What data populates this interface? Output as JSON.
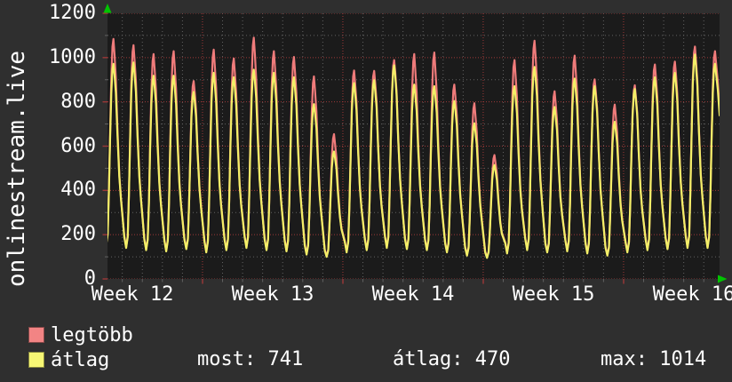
{
  "graph": {
    "vertical_axis_title": "onlinestream.live",
    "legend": [
      {
        "label": "legtöbb",
        "color": "#f28484"
      },
      {
        "label": "átlag",
        "color": "#f7f774"
      }
    ],
    "stats": [
      {
        "text": "most: 741"
      },
      {
        "text": "átlag: 470"
      },
      {
        "text": "max: 1014"
      }
    ]
  },
  "colors": {
    "background": "#2f2f2f",
    "plot_background": "#1b1b1b",
    "series_max_line": "#ef7b7b",
    "series_avg_line": "#f3ef68",
    "grid_major": "#9e3838",
    "grid_minor": "#626262",
    "axis_arrow": "#00c400",
    "text": "#ffffff"
  },
  "chart_data": {
    "type": "line",
    "title": "onlinestream.live",
    "xlabel": "",
    "ylabel": "",
    "ylim": [
      0,
      1200
    ],
    "y_ticks": [
      0,
      200,
      400,
      600,
      800,
      1000,
      1200
    ],
    "y_minor_ticks": [
      100,
      300,
      500,
      700,
      900,
      1100
    ],
    "x_tick_labels": [
      "Week 12",
      "Week 13",
      "Week 14",
      "Week 15",
      "Week 16"
    ],
    "grid": "dotted, red majors (weeks / every 200), gray minors (days / every 100)",
    "legend_position": "bottom-left",
    "days_shown": 30.5,
    "series": [
      {
        "name": "legtöbb",
        "color": "#ef7b7b",
        "daily_peaks": [
          1080,
          1052,
          1012,
          1025,
          890,
          1032,
          992,
          1086,
          1025,
          999,
          911,
          650,
          938,
          936,
          985,
          1012,
          1019,
          874,
          790,
          556,
          985,
          1072,
          844,
          1005,
          898,
          784,
          871,
          965,
          978,
          1046,
          1025
        ]
      },
      {
        "name": "átlag",
        "color": "#f3ef68",
        "daily_peaks": [
          972,
          978,
          918,
          918,
          845,
          931,
          911,
          945,
          931,
          911,
          790,
          576,
          885,
          898,
          965,
          878,
          871,
          804,
          703,
          515,
          871,
          958,
          777,
          905,
          871,
          710,
          858,
          911,
          931,
          1014,
          972
        ]
      }
    ],
    "daily_troughs": [
      150,
      140,
      130,
      125,
      135,
      120,
      130,
      140,
      130,
      125,
      110,
      100,
      120,
      130,
      140,
      135,
      130,
      120,
      105,
      95,
      115,
      130,
      120,
      125,
      115,
      105,
      120,
      130,
      135,
      140,
      140
    ],
    "daily_profile": [
      [
        0,
        0.2
      ],
      [
        0.1,
        0.06
      ],
      [
        0.19,
        0.0
      ],
      [
        0.27,
        0.06
      ],
      [
        0.33,
        0.28
      ],
      [
        0.39,
        0.58
      ],
      [
        0.45,
        0.84
      ],
      [
        0.51,
        0.97
      ],
      [
        0.56,
        1.0
      ],
      [
        0.61,
        0.94
      ],
      [
        0.68,
        0.84
      ],
      [
        0.76,
        0.6
      ],
      [
        0.85,
        0.38
      ],
      [
        0.93,
        0.26
      ]
    ],
    "last_day_tail": [
      [
        0.61,
        0.95
      ],
      [
        0.7,
        0.86
      ],
      [
        0.79,
        0.72
      ]
    ],
    "stats": {
      "most": 741,
      "atlag": 470,
      "max": 1014
    }
  }
}
